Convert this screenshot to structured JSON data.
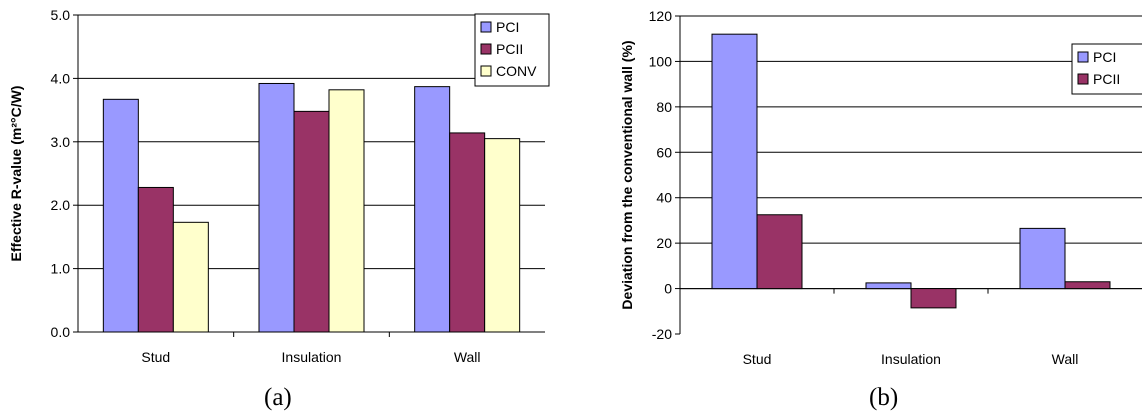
{
  "colors": {
    "PCI": "#9999FF",
    "PCII": "#993366",
    "CONV": "#FFFFCC",
    "grid": "#000000",
    "bar_stroke": "#000000"
  },
  "chart_data": [
    {
      "type": "bar",
      "caption": "(a)",
      "title": "",
      "xlabel": "",
      "ylabel": "Effective R-value (m²°C/W)",
      "ylim": [
        0,
        5
      ],
      "yticks": [
        0,
        1,
        2,
        3,
        4,
        5
      ],
      "ytick_labels": [
        "0.0",
        "1.0",
        "2.0",
        "3.0",
        "4.0",
        "5.0"
      ],
      "grid": true,
      "legend_position": "top-right",
      "categories": [
        "Stud",
        "Insulation",
        "Wall"
      ],
      "series": [
        {
          "name": "PCI",
          "color": "#9999FF",
          "values": [
            3.67,
            3.92,
            3.87
          ]
        },
        {
          "name": "PCII",
          "color": "#993366",
          "values": [
            2.28,
            3.48,
            3.14
          ]
        },
        {
          "name": "CONV",
          "color": "#FFFFCC",
          "values": [
            1.73,
            3.82,
            3.05
          ]
        }
      ]
    },
    {
      "type": "bar",
      "caption": "(b)",
      "title": "",
      "xlabel": "",
      "ylabel": "Deviation from the conventional wall (%)",
      "ylim": [
        -20,
        120
      ],
      "yticks": [
        -20,
        0,
        20,
        40,
        60,
        80,
        100,
        120
      ],
      "ytick_labels": [
        "-20",
        "0",
        "20",
        "40",
        "60",
        "80",
        "100",
        "120"
      ],
      "grid": true,
      "legend_position": "top-right",
      "categories": [
        "Stud",
        "Insulation",
        "Wall"
      ],
      "series": [
        {
          "name": "PCI",
          "color": "#9999FF",
          "values": [
            112,
            2.5,
            26.5
          ]
        },
        {
          "name": "PCII",
          "color": "#993366",
          "values": [
            32.5,
            -8.5,
            3
          ]
        }
      ]
    }
  ]
}
